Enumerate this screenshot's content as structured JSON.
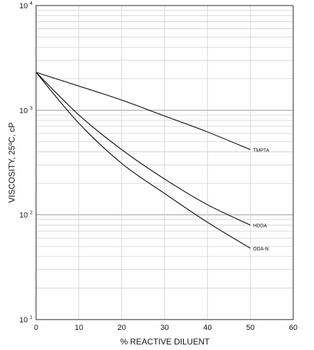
{
  "chart_data": {
    "type": "line",
    "xlabel": "% REACTIVE DILUENT",
    "ylabel": "VISCOSITY, 25ºC, cP",
    "xlim": [
      0,
      60
    ],
    "ylim": [
      10,
      10000
    ],
    "yscale": "log",
    "x_ticks": [
      "0",
      "10",
      "20",
      "30",
      "40",
      "50",
      "60"
    ],
    "y_ticks": [
      {
        "base": "10",
        "exp": "1",
        "value": 10
      },
      {
        "base": "10",
        "exp": "2",
        "value": 100
      },
      {
        "base": "10",
        "exp": "3",
        "value": 1000
      },
      {
        "base": "10",
        "exp": "4",
        "value": 10000
      }
    ],
    "grid": true,
    "series": [
      {
        "name": "TMPTA",
        "x": [
          0,
          10,
          20,
          30,
          40,
          50
        ],
        "y": [
          2300,
          1700,
          1250,
          880,
          620,
          420
        ]
      },
      {
        "name": "HDDA",
        "x": [
          0,
          10,
          20,
          30,
          40,
          50
        ],
        "y": [
          2300,
          900,
          420,
          220,
          125,
          80
        ]
      },
      {
        "name": "ODA-N",
        "x": [
          0,
          10,
          20,
          30,
          40,
          50
        ],
        "y": [
          2300,
          750,
          310,
          160,
          85,
          48
        ]
      }
    ]
  }
}
